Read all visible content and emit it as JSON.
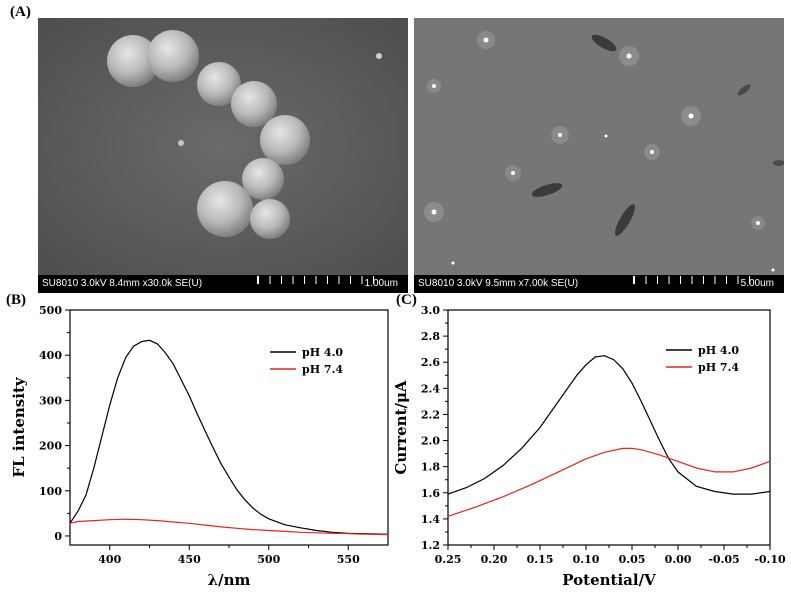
{
  "panel_labels": {
    "a": "(A)",
    "b": "(B)",
    "c": "(C)"
  },
  "sem_left": {
    "info": "SU8010 3.0kV 8.4mm x30.0k SE(U)",
    "scale": "1.00um"
  },
  "sem_right": {
    "info": "SU8010 3.0kV 9.5mm x7.00k SE(U)",
    "scale": "5.00um"
  },
  "chart_data": [
    {
      "type": "line",
      "title": "",
      "xlabel": "λ/nm",
      "ylabel": "FL intensity",
      "xlim": [
        375,
        575
      ],
      "ylim": [
        -20,
        500
      ],
      "xticks": [
        400,
        450,
        500,
        550
      ],
      "yticks": [
        0,
        100,
        200,
        300,
        400,
        500
      ],
      "legend_position": "top-right",
      "series": [
        {
          "name": "pH 4.0",
          "color": "#000000",
          "x": [
            375,
            380,
            385,
            390,
            395,
            400,
            405,
            410,
            415,
            420,
            425,
            430,
            435,
            440,
            445,
            450,
            455,
            460,
            465,
            470,
            475,
            480,
            485,
            490,
            495,
            500,
            510,
            520,
            530,
            540,
            550,
            560,
            575
          ],
          "y": [
            28,
            55,
            90,
            150,
            220,
            290,
            350,
            395,
            420,
            430,
            433,
            425,
            405,
            380,
            345,
            310,
            270,
            232,
            195,
            160,
            130,
            102,
            80,
            62,
            48,
            38,
            25,
            18,
            12,
            8,
            6,
            5,
            4
          ]
        },
        {
          "name": "pH 7.4",
          "color": "#e8241c",
          "x": [
            375,
            380,
            390,
            400,
            410,
            420,
            430,
            440,
            450,
            460,
            470,
            480,
            490,
            500,
            510,
            520,
            530,
            540,
            550,
            560,
            575
          ],
          "y": [
            28,
            32,
            34,
            36,
            37,
            36,
            34,
            31,
            28,
            24,
            20,
            17,
            14,
            12,
            10,
            8,
            7,
            6,
            5,
            4,
            3
          ]
        }
      ]
    },
    {
      "type": "line",
      "title": "",
      "xlabel": "Potential/V",
      "ylabel": "Current/μA",
      "xlim": [
        0.25,
        -0.1
      ],
      "ylim": [
        1.2,
        3.0
      ],
      "xticks": [
        0.25,
        0.2,
        0.15,
        0.1,
        0.05,
        0.0,
        -0.05,
        -0.1
      ],
      "xtick_labels": [
        "0.25",
        "0.20",
        "0.15",
        "0.10",
        "0.05",
        "0.00",
        "-0.05",
        "-0.10"
      ],
      "yticks": [
        1.2,
        1.4,
        1.6,
        1.8,
        2.0,
        2.2,
        2.4,
        2.6,
        2.8,
        3.0
      ],
      "ytick_labels": [
        "1.2",
        "1.4",
        "1.6",
        "1.8",
        "2.0",
        "2.2",
        "2.4",
        "2.6",
        "2.8",
        "3.0"
      ],
      "legend_position": "top-right",
      "series": [
        {
          "name": "pH 4.0",
          "color": "#000000",
          "x": [
            0.25,
            0.23,
            0.21,
            0.19,
            0.17,
            0.15,
            0.13,
            0.11,
            0.1,
            0.09,
            0.08,
            0.07,
            0.06,
            0.05,
            0.04,
            0.03,
            0.02,
            0.01,
            0.0,
            -0.02,
            -0.04,
            -0.06,
            -0.08,
            -0.1
          ],
          "y": [
            1.59,
            1.64,
            1.71,
            1.81,
            1.94,
            2.1,
            2.3,
            2.5,
            2.58,
            2.64,
            2.65,
            2.62,
            2.55,
            2.44,
            2.3,
            2.15,
            2.0,
            1.86,
            1.76,
            1.65,
            1.61,
            1.59,
            1.59,
            1.61
          ]
        },
        {
          "name": "pH 7.4",
          "color": "#e8241c",
          "x": [
            0.25,
            0.22,
            0.19,
            0.16,
            0.13,
            0.1,
            0.08,
            0.06,
            0.05,
            0.04,
            0.02,
            0.0,
            -0.02,
            -0.04,
            -0.06,
            -0.08,
            -0.1
          ],
          "y": [
            1.42,
            1.49,
            1.57,
            1.66,
            1.76,
            1.86,
            1.91,
            1.94,
            1.94,
            1.93,
            1.89,
            1.84,
            1.79,
            1.76,
            1.76,
            1.79,
            1.84
          ]
        }
      ]
    }
  ]
}
